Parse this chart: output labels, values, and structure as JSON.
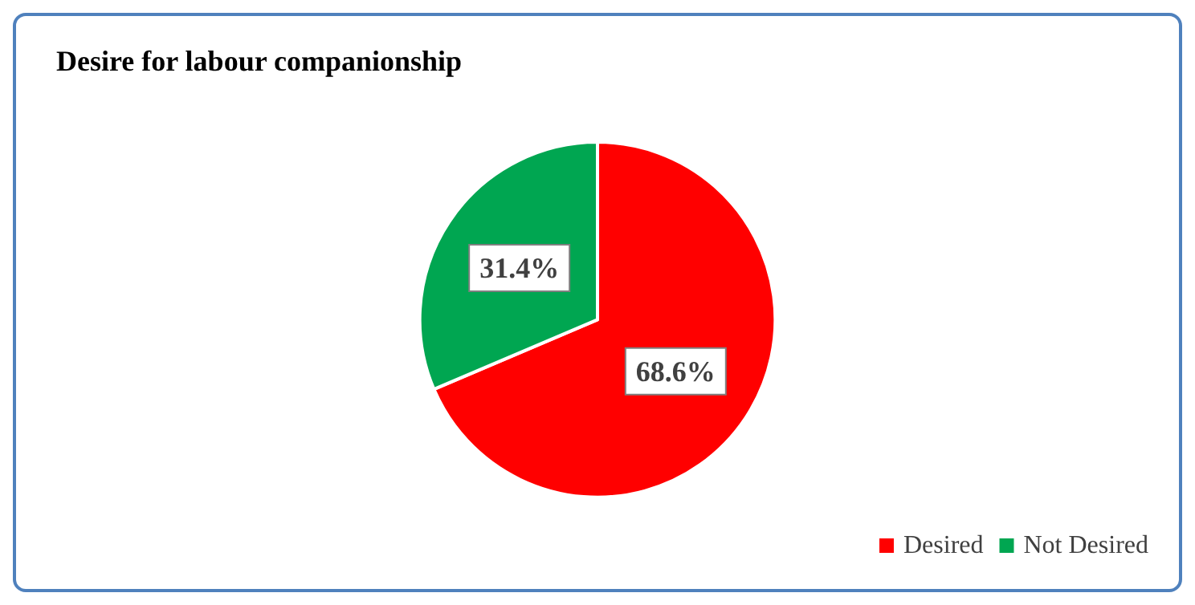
{
  "chart_data": {
    "type": "pie",
    "title": "Desire for labour companionship",
    "categories": [
      "Desired",
      "Not Desired"
    ],
    "values": [
      68.6,
      31.4
    ],
    "colors": [
      "#ff0000",
      "#00a651"
    ],
    "value_labels": [
      "68.6%",
      "31.4%"
    ],
    "legend": "bottom right"
  }
}
